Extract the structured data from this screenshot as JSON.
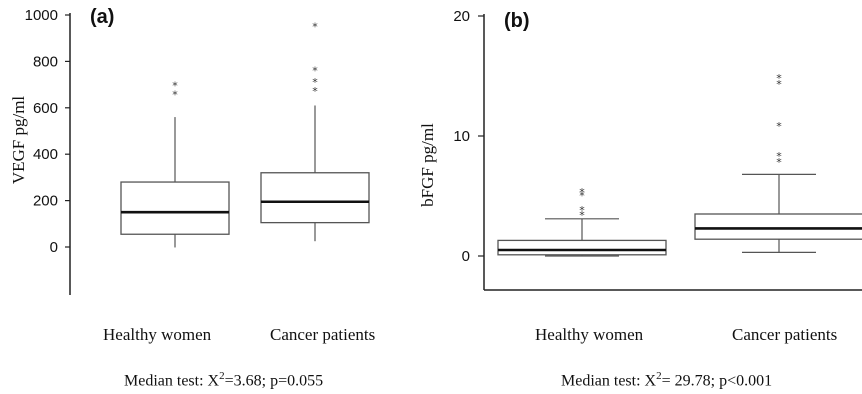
{
  "chart_data": [
    {
      "type": "box",
      "panel": "(a)",
      "ylabel": "VEGF pg/ml",
      "ylim": [
        0,
        1000
      ],
      "yticks": [
        0,
        200,
        400,
        600,
        800,
        1000
      ],
      "categories": [
        "Healthy women",
        "Cancer patients"
      ],
      "boxes": [
        {
          "category": "Healthy women",
          "whisker_low": -2,
          "q1": 55,
          "median": 150,
          "q3": 280,
          "whisker_high": 560,
          "outliers": [
            665,
            705
          ]
        },
        {
          "category": "Cancer patients",
          "whisker_low": 25,
          "q1": 105,
          "median": 195,
          "q3": 320,
          "whisker_high": 610,
          "outliers": [
            680,
            720,
            770,
            960
          ]
        }
      ],
      "caption": {
        "prefix": "Median test: X",
        "sup": "2",
        "suffix": "=3.68; p=0.055"
      }
    },
    {
      "type": "box",
      "panel": "(b)",
      "ylabel": "bFGF pg/ml",
      "ylim": [
        0,
        20
      ],
      "yticks": [
        0,
        10,
        20
      ],
      "categories": [
        "Healthy women",
        "Cancer patients"
      ],
      "boxes": [
        {
          "category": "Healthy women",
          "whisker_low": 0,
          "q1": 0.1,
          "median": 0.5,
          "q3": 1.3,
          "whisker_high": 3.1,
          "outliers": [
            3.6,
            4.0,
            5.2,
            5.5
          ]
        },
        {
          "category": "Cancer patients",
          "whisker_low": 0.3,
          "q1": 1.4,
          "median": 2.3,
          "q3": 3.5,
          "whisker_high": 6.8,
          "outliers": [
            8.0,
            8.5,
            11.0,
            14.5,
            15.0
          ]
        }
      ],
      "caption": {
        "prefix": "Median test: X",
        "sup": "2",
        "suffix": "= 29.78; p<0.001"
      }
    }
  ],
  "colors": {
    "line": "#555555",
    "median": "#111111",
    "axis": "#222222"
  }
}
